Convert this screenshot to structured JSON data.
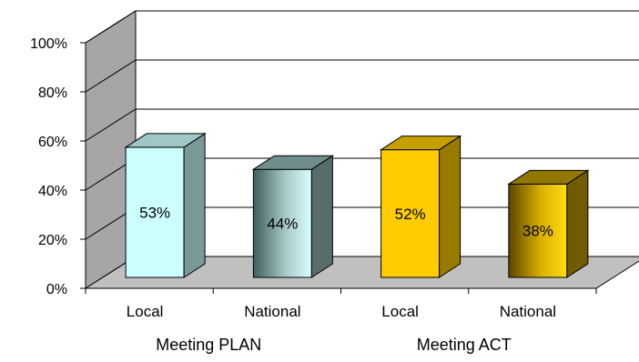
{
  "chart_data": {
    "type": "bar",
    "style": "3d-clustered",
    "ylim": [
      0,
      100
    ],
    "yticks": [
      "0%",
      "20%",
      "40%",
      "60%",
      "80%",
      "100%"
    ],
    "grid": true,
    "legend": "none",
    "groups": [
      {
        "label": "Meeting PLAN",
        "bars": [
          {
            "category": "Local",
            "value": 53,
            "label": "53%",
            "color": "#ccffff"
          },
          {
            "category": "National",
            "value": 44,
            "label": "44%",
            "color": "#8fb5b3"
          }
        ]
      },
      {
        "label": "Meeting ACT",
        "bars": [
          {
            "category": "Local",
            "value": 52,
            "label": "52%",
            "color": "#ffcc00"
          },
          {
            "category": "National",
            "value": 38,
            "label": "38%",
            "color": "#ba9700"
          }
        ]
      }
    ],
    "colors": {
      "wall": "#ffffff",
      "side_wall": "#a6a6a6",
      "floor": "#c0c0c0",
      "gridline": "#000000"
    }
  }
}
